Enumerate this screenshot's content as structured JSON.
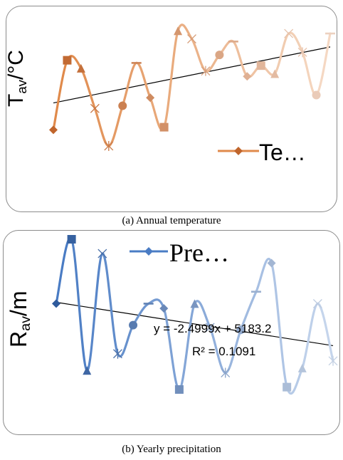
{
  "chart_data": [
    {
      "type": "line",
      "caption": "(a) Annual temperature",
      "ylabel_main": "T",
      "ylabel_sub": "av",
      "ylabel_unit": "/°C",
      "legend": "Te…",
      "trendline": true,
      "series": [
        {
          "name": "Te…",
          "values": [
            1.0,
            3.6,
            3.3,
            1.8,
            0.4,
            1.9,
            3.5,
            2.2,
            1.1,
            4.7,
            4.4,
            3.2,
            3.8,
            4.3,
            3.0,
            3.4,
            3.1,
            4.6,
            3.9,
            2.3,
            4.6
          ]
        }
      ],
      "x": [
        1,
        2,
        3,
        4,
        5,
        6,
        7,
        8,
        9,
        10,
        11,
        12,
        13,
        14,
        15,
        16,
        17,
        18,
        19,
        20,
        21
      ],
      "colors": {
        "series": "#c0652c",
        "line": "#e08a4b",
        "trend": "#000000"
      }
    },
    {
      "type": "line",
      "caption": "(b) Yearly precipitation",
      "ylabel_main": "R",
      "ylabel_sub": "av",
      "ylabel_unit": "/m",
      "legend": "Pre…",
      "trendline": true,
      "trend_equation": "y = -2.4999x + 5183.2",
      "r_squared": "R² = 0.1091",
      "series": [
        {
          "name": "Pre…",
          "values": [
            3.6,
            6.3,
            0.8,
            5.7,
            1.5,
            2.7,
            3.6,
            3.4,
            0.0,
            3.6,
            2.6,
            0.7,
            2.5,
            4.1,
            5.3,
            0.1,
            0.9,
            3.6,
            1.2
          ]
        }
      ],
      "x": [
        1,
        2,
        3,
        4,
        5,
        6,
        7,
        8,
        9,
        10,
        11,
        12,
        13,
        14,
        15,
        16,
        17,
        18,
        19
      ],
      "colors": {
        "series": "#2e5a9c",
        "line": "#4a7cc4",
        "trend": "#000000"
      }
    }
  ]
}
